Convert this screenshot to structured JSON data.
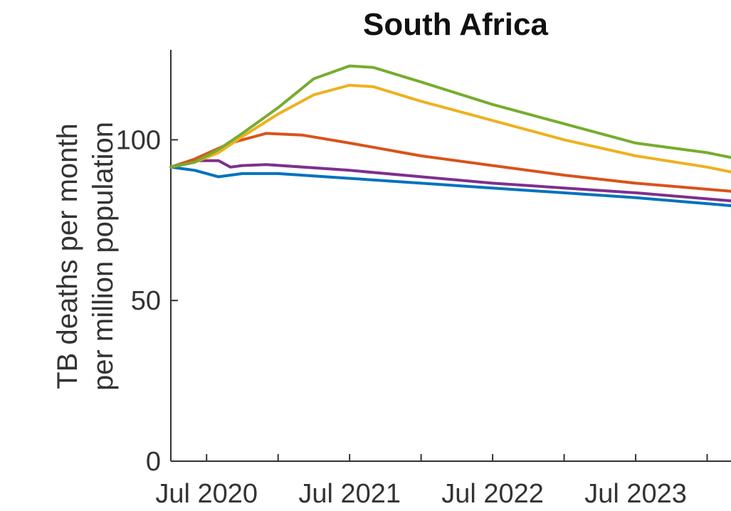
{
  "chart_data": {
    "type": "line",
    "title": "South Africa",
    "xlabel": "",
    "ylabel_lines": [
      "TB deaths per month",
      "per million population"
    ],
    "x_ticks": [
      "Jul 2020",
      "Jul 2021",
      "Jul 2022",
      "Jul 2023"
    ],
    "y_ticks": [
      "0",
      "50",
      "100"
    ],
    "ylim": [
      0,
      128
    ],
    "xlim": [
      "2020-04",
      "2024-03"
    ],
    "grid": false,
    "series": [
      {
        "color": "#77ac30",
        "x": [
          "2020-04",
          "2020-06",
          "2020-08",
          "2020-10",
          "2021-01",
          "2021-04",
          "2021-07",
          "2021-09",
          "2022-01",
          "2022-07",
          "2023-01",
          "2023-07",
          "2024-01",
          "2024-03"
        ],
        "y": [
          91.5,
          93,
          97,
          102,
          110,
          119,
          123,
          122.5,
          118,
          111,
          105,
          99,
          96,
          94.5
        ]
      },
      {
        "color": "#edb120",
        "x": [
          "2020-04",
          "2020-06",
          "2020-08",
          "2020-10",
          "2021-01",
          "2021-04",
          "2021-07",
          "2021-09",
          "2022-01",
          "2022-07",
          "2023-01",
          "2023-07",
          "2024-01",
          "2024-03"
        ],
        "y": [
          91.5,
          93,
          96,
          101,
          108,
          114,
          117,
          116.5,
          112,
          106,
          100,
          95,
          91.5,
          90
        ]
      },
      {
        "color": "#d95319",
        "x": [
          "2020-04",
          "2020-06",
          "2020-09",
          "2020-12",
          "2021-03",
          "2021-07",
          "2022-01",
          "2022-07",
          "2023-01",
          "2023-07",
          "2024-03"
        ],
        "y": [
          91.5,
          94,
          99,
          102,
          101.5,
          99,
          95,
          92,
          89,
          86.5,
          84
        ]
      },
      {
        "color": "#7e2f8e",
        "x": [
          "2020-04",
          "2020-06",
          "2020-08",
          "2020-09",
          "2020-10",
          "2020-12",
          "2021-07",
          "2022-07",
          "2023-07",
          "2024-03"
        ],
        "y": [
          91.5,
          93.5,
          93.5,
          91.5,
          92,
          92.3,
          90.5,
          86.5,
          83.5,
          81
        ]
      },
      {
        "color": "#0072bd",
        "x": [
          "2020-04",
          "2020-06",
          "2020-08",
          "2020-10",
          "2021-01",
          "2021-07",
          "2022-07",
          "2023-07",
          "2024-03"
        ],
        "y": [
          91.5,
          90.5,
          88.5,
          89.5,
          89.5,
          88,
          85,
          82,
          79.5
        ]
      }
    ]
  }
}
